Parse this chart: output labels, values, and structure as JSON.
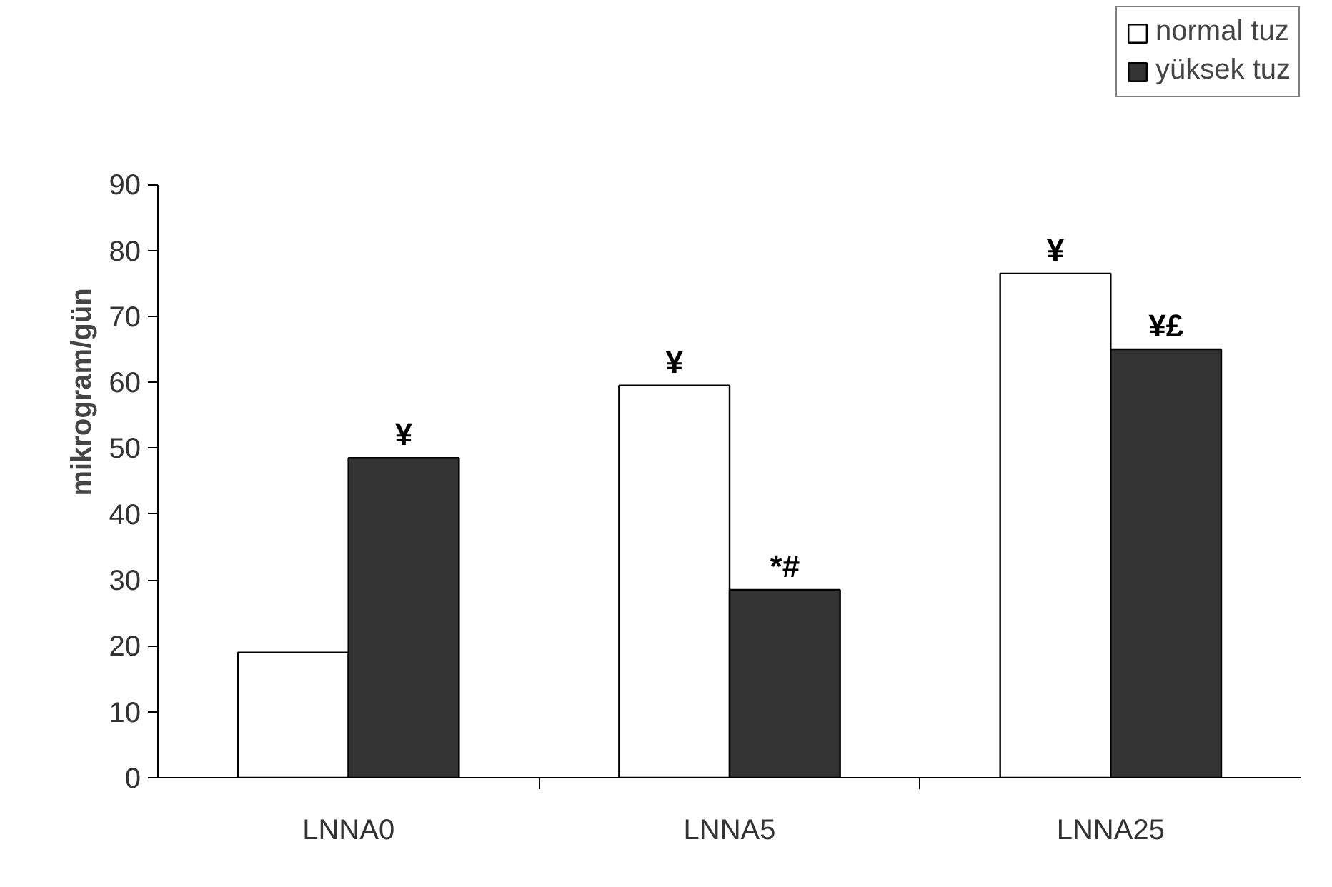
{
  "chart_data": {
    "type": "bar",
    "ylabel": "mikrogram/gün",
    "categories": [
      "LNNA0",
      "LNNA5",
      "LNNA25"
    ],
    "series": [
      {
        "name": "normal tuz",
        "color": "#ffffff",
        "values": [
          19,
          59.5,
          76.5
        ]
      },
      {
        "name": "yüksek tuz",
        "color": "#333333",
        "values": [
          48.5,
          28.5,
          65
        ]
      }
    ],
    "ylim": [
      0,
      90
    ],
    "yticks": [
      0,
      10,
      20,
      30,
      40,
      50,
      60,
      70,
      80,
      90
    ],
    "grid": false,
    "legend": "top right",
    "annotations": [
      {
        "text": "¥",
        "x": "LNNA0",
        "y": 48.5
      },
      {
        "text": "¥",
        "x": "LNNA5",
        "y": 59.5
      },
      {
        "text": "*#",
        "x": "LNNA5",
        "y": 28.5
      },
      {
        "text": "¥",
        "x": "LNNA25",
        "y": 76.5
      },
      {
        "text": "¥£",
        "x": "LNNA25",
        "y": 65
      }
    ]
  }
}
